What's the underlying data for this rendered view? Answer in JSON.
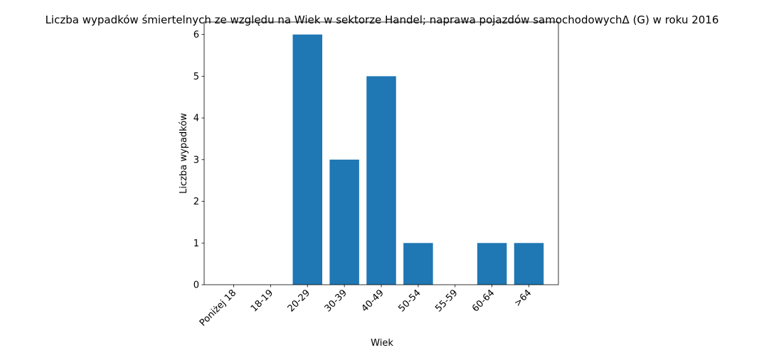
{
  "chart_data": {
    "type": "bar",
    "title": "Liczba wypadków śmiertelnych ze względu na Wiek w sektorze Handel; naprawa pojazdów samochodowychΔ (G) w roku 2016",
    "xlabel": "Wiek",
    "ylabel": "Liczba wypadków",
    "categories": [
      "Poniżej 18",
      "18-19",
      "20-29",
      "30-39",
      "40-49",
      "50-54",
      "55-59",
      "60-64",
      ">64"
    ],
    "values": [
      0,
      0,
      6,
      3,
      5,
      1,
      0,
      1,
      1
    ],
    "ylim": [
      0,
      6.3
    ],
    "yticks": [
      "0",
      "1",
      "2",
      "3",
      "4",
      "5",
      "6"
    ],
    "bar_color": "#1f77b4",
    "grid": false,
    "legend": "none"
  }
}
